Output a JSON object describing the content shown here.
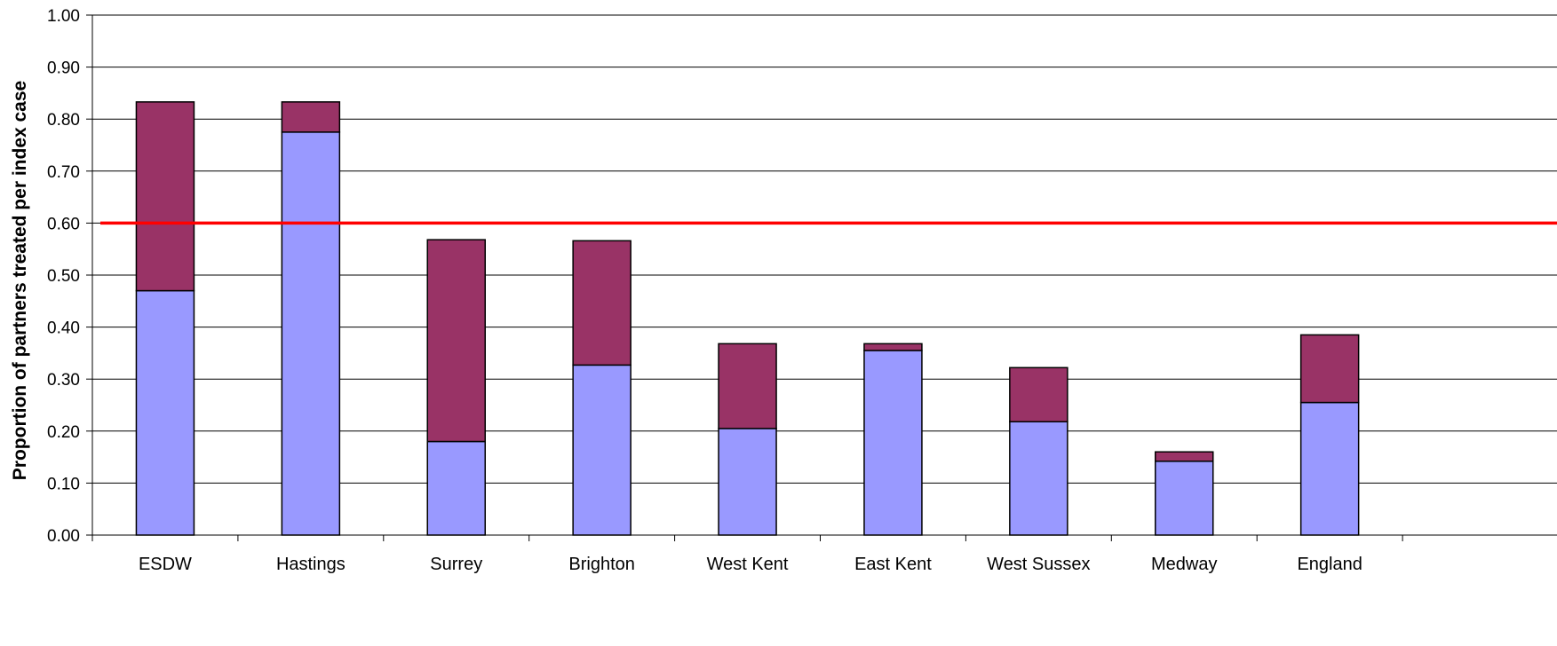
{
  "chart_data": {
    "type": "bar",
    "stacked": true,
    "title": "",
    "xlabel": "",
    "ylabel": "Proportion of partners treated per index case",
    "ylim": [
      0,
      1
    ],
    "yticks": [
      "0.00",
      "0.10",
      "0.20",
      "0.30",
      "0.40",
      "0.50",
      "0.60",
      "0.70",
      "0.80",
      "0.90",
      "1.00"
    ],
    "grid": true,
    "legend": "none",
    "categories": [
      "ESDW",
      "Hastings",
      "Surrey",
      "Brighton",
      "West Kent",
      "East Kent",
      "West Sussex",
      "Medway",
      "England"
    ],
    "series": [
      {
        "values": [
          0.47,
          0.775,
          0.18,
          0.327,
          0.205,
          0.355,
          0.218,
          0.142,
          0.255
        ],
        "color": "#9999ff"
      },
      {
        "values": [
          0.363,
          0.058,
          0.388,
          0.239,
          0.163,
          0.013,
          0.104,
          0.018,
          0.13
        ],
        "color": "#993366"
      }
    ],
    "reference_line": {
      "value": 0.6,
      "color": "#ff0000"
    }
  }
}
